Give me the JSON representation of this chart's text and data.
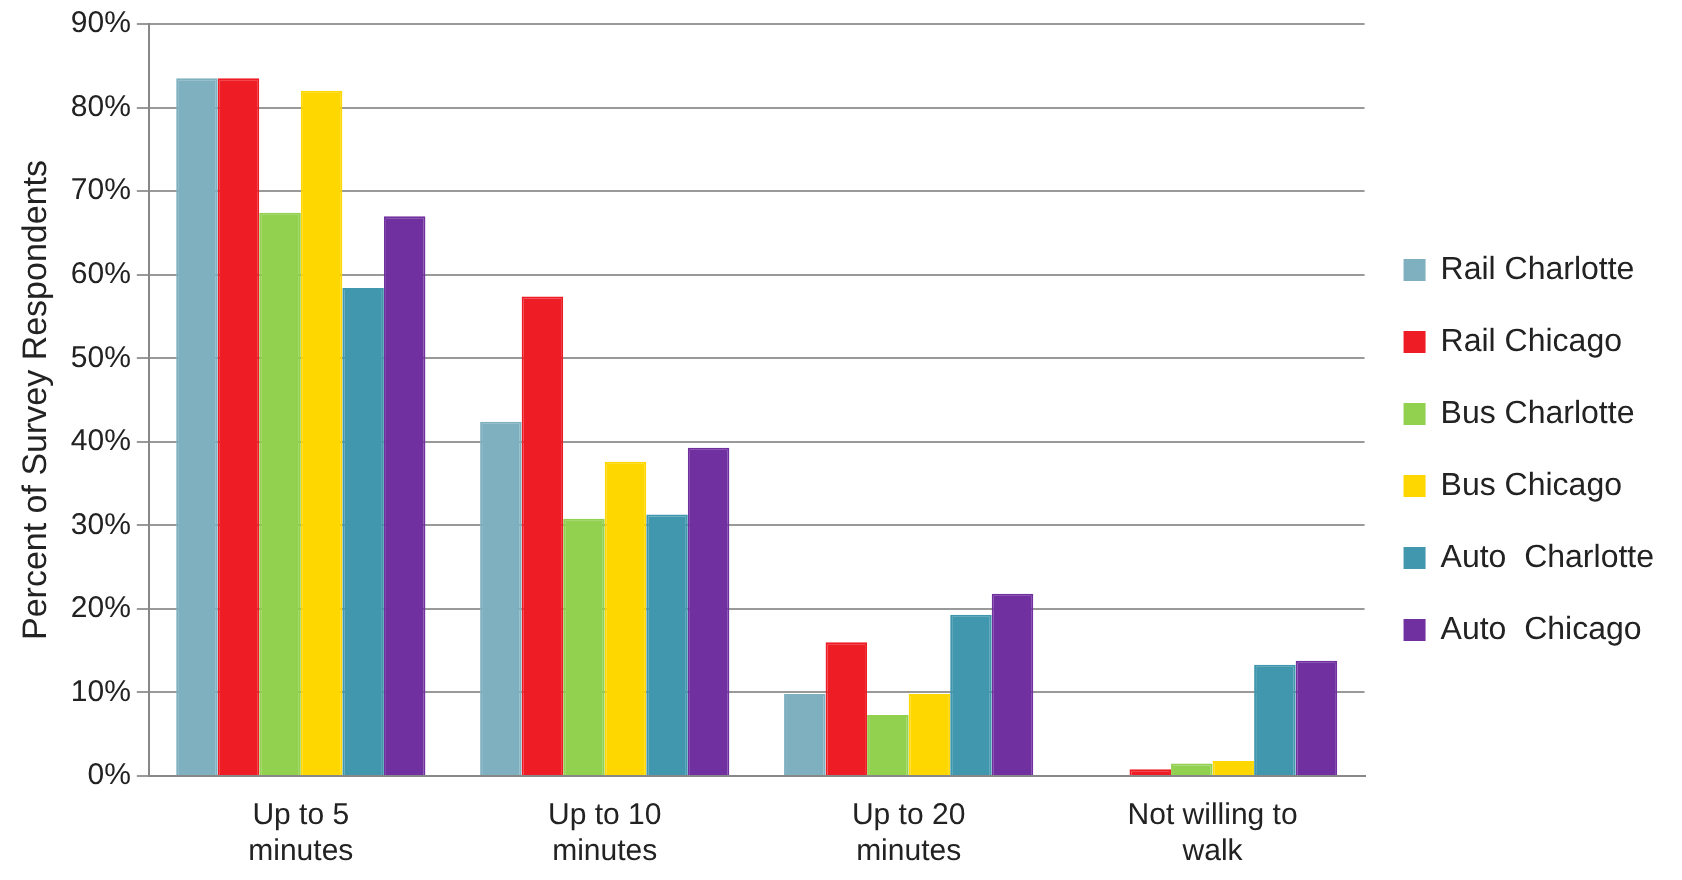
{
  "chart_data": {
    "type": "bar",
    "ylabel": "Percent of Survey Respondents",
    "categories": [
      "Up to 5 minutes",
      "Up to 10 minutes",
      "Up to 20 minutes",
      "Not willing to walk"
    ],
    "series": [
      {
        "name": "Rail Charlotte",
        "color": "#7fb0c0",
        "values": [
          83.5,
          42.4,
          9.8,
          null
        ]
      },
      {
        "name": "Rail Chicago",
        "color": "#ee1c25",
        "values": [
          83.5,
          57.4,
          16,
          0.8
        ]
      },
      {
        "name": "Bus Charlotte",
        "color": "#92d050",
        "values": [
          67.4,
          30.8,
          7.3,
          1.5
        ]
      },
      {
        "name": "Bus Chicago",
        "color": "#ffd700",
        "values": [
          82,
          37.6,
          9.8,
          1.8
        ]
      },
      {
        "name": "Auto  Charlotte",
        "color": "#4197ae",
        "values": [
          58.4,
          31.3,
          19.3,
          13.3
        ]
      },
      {
        "name": "Auto  Chicago",
        "color": "#7030a0",
        "values": [
          67,
          39.3,
          21.8,
          13.8
        ]
      }
    ],
    "ylim": [
      0,
      90
    ],
    "yticks": [
      {
        "value": 0,
        "label": "0%"
      },
      {
        "value": 10,
        "label": "10%"
      },
      {
        "value": 20,
        "label": "20%"
      },
      {
        "value": 30,
        "label": "30%"
      },
      {
        "value": 40,
        "label": "40%"
      },
      {
        "value": 50,
        "label": "50%"
      },
      {
        "value": 60,
        "label": "60%"
      },
      {
        "value": 70,
        "label": "70%"
      },
      {
        "value": 80,
        "label": "80%"
      },
      {
        "value": 90,
        "label": "90%"
      }
    ],
    "grid": "y",
    "legend": "right"
  }
}
